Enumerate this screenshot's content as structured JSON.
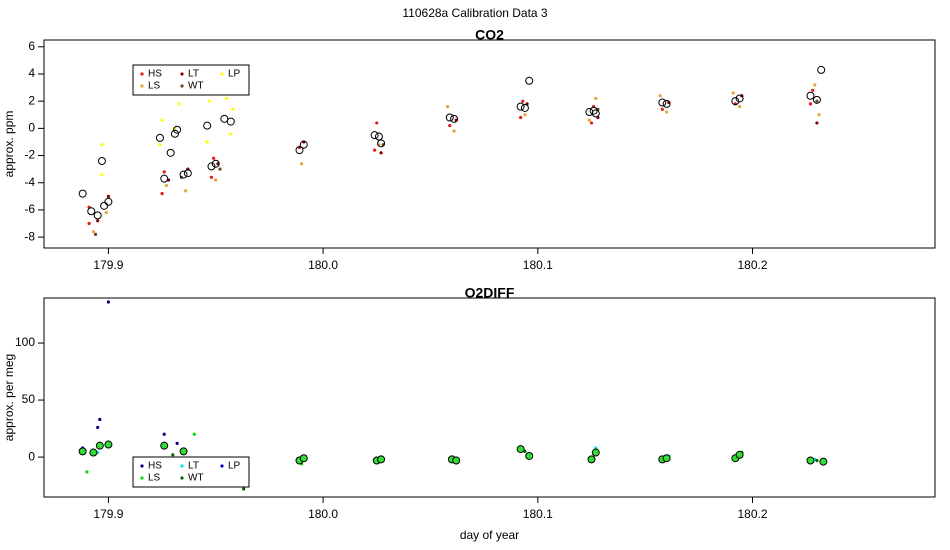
{
  "title": "110628a   Calibration Data 3",
  "chart_data": [
    {
      "type": "scatter",
      "title": "CO2",
      "ylabel": "approx. ppm",
      "xlim": [
        179.87,
        180.285
      ],
      "ylim": [
        -8.8,
        6.5
      ],
      "xticks": [
        179.9,
        {
          "value": 180,
          "label": "180.0"
        },
        180.1,
        180.2
      ],
      "yticks": [
        -8,
        -6,
        -4,
        -2,
        0,
        2,
        4,
        6
      ],
      "legend": "top-left",
      "series": [
        {
          "name": "HS",
          "color": "#e41a1c",
          "x": [
            179.891,
            179.891,
            179.925,
            179.926,
            179.948,
            179.949,
            179.989,
            180.024,
            180.025,
            180.059,
            180.092,
            180.093,
            180.125,
            180.126,
            180.158,
            180.192,
            180.227,
            180.228
          ],
          "values": [
            -7.0,
            -5.8,
            -4.8,
            -3.2,
            -3.6,
            -2.2,
            -1.4,
            -1.6,
            0.4,
            0.2,
            0.8,
            2.0,
            0.4,
            1.6,
            1.4,
            1.8,
            1.8,
            2.8
          ]
        },
        {
          "name": "LS",
          "color": "#e8a33a",
          "x": [
            179.893,
            179.899,
            179.927,
            179.936,
            179.95,
            179.99,
            180.026,
            180.058,
            180.061,
            180.094,
            180.124,
            180.127,
            180.157,
            180.16,
            180.191,
            180.194,
            180.229,
            180.231
          ],
          "values": [
            -7.6,
            -6.2,
            -4.2,
            -4.6,
            -3.8,
            -2.6,
            -1.2,
            1.6,
            -0.2,
            1.0,
            0.6,
            2.2,
            2.4,
            1.2,
            2.6,
            1.6,
            3.2,
            1.0
          ]
        },
        {
          "name": "LT",
          "color": "#8b0000",
          "x": [
            179.895,
            179.9,
            179.928,
            179.937,
            179.951,
            179.991,
            180.027,
            180.062,
            180.095,
            180.128,
            180.161,
            180.195,
            180.23
          ],
          "values": [
            -6.8,
            -5.0,
            -3.8,
            -3.0,
            -2.6,
            -1.0,
            -1.8,
            0.6,
            1.8,
            0.8,
            1.9,
            2.4,
            0.4
          ]
        },
        {
          "name": "WT",
          "color": "#6b4226",
          "x": [
            179.894,
            179.934,
            179.952,
            180.028,
            180.128,
            180.23
          ],
          "values": [
            -7.8,
            -3.6,
            -3.0,
            -1.2,
            1.4,
            2.0
          ]
        },
        {
          "name": "LP",
          "color": "#ffff00",
          "x": [
            179.897,
            179.897,
            179.924,
            179.925,
            179.931,
            179.933,
            179.946,
            179.947,
            179.955,
            179.957,
            179.958
          ],
          "values": [
            -1.2,
            -3.4,
            -1.2,
            0.6,
            0.0,
            1.8,
            -1.0,
            2.0,
            2.2,
            -0.4,
            1.4
          ]
        }
      ],
      "circles": {
        "color": "none",
        "x": [
          179.888,
          179.892,
          179.895,
          179.897,
          179.898,
          179.9,
          179.924,
          179.926,
          179.929,
          179.931,
          179.932,
          179.935,
          179.937,
          179.946,
          179.948,
          179.95,
          179.954,
          179.957,
          179.989,
          179.991,
          180.024,
          180.026,
          180.027,
          180.059,
          180.061,
          180.092,
          180.094,
          180.096,
          180.124,
          180.126,
          180.127,
          180.158,
          180.16,
          180.192,
          180.194,
          180.227,
          180.23,
          180.232
        ],
        "values": [
          -4.8,
          -6.1,
          -6.4,
          -2.4,
          -5.7,
          -5.4,
          -0.7,
          -3.7,
          -1.8,
          -0.4,
          -0.1,
          -3.4,
          -3.3,
          0.2,
          -2.8,
          -2.6,
          0.7,
          0.5,
          -1.6,
          -1.2,
          -0.5,
          -0.6,
          -1.1,
          0.8,
          0.7,
          1.6,
          1.5,
          3.5,
          1.2,
          1.3,
          1.1,
          1.9,
          1.8,
          2.0,
          2.2,
          2.4,
          2.1,
          4.3
        ]
      }
    },
    {
      "type": "scatter",
      "title": "O2DIFF",
      "ylabel": "approx. per meg",
      "xlabel": "day of year",
      "xlim": [
        179.87,
        180.285
      ],
      "ylim": [
        -35,
        139.5
      ],
      "xticks": [
        179.9,
        {
          "value": 180,
          "label": "180.0"
        },
        180.1,
        180.2
      ],
      "yticks": [
        0,
        50,
        100
      ],
      "legend": "bottom-left",
      "series": [
        {
          "name": "HS",
          "color": "#000080",
          "x": [
            179.888,
            179.895,
            179.896,
            179.9,
            179.925,
            179.926,
            179.932,
            179.935,
            180.092
          ],
          "values": [
            6,
            26,
            33,
            136,
            10,
            20,
            12,
            4,
            8
          ]
        },
        {
          "name": "LS",
          "color": "#00e000",
          "x": [
            179.89,
            179.893,
            179.94,
            179.99,
            180.025,
            180.06,
            180.125,
            180.158,
            180.192,
            180.227
          ],
          "values": [
            -13,
            3,
            20,
            -6,
            -4,
            -3,
            -3,
            -3,
            -2,
            -5
          ]
        },
        {
          "name": "LT",
          "color": "#00e5ee",
          "x": [
            179.895,
            180.027,
            180.127,
            180.161,
            180.229
          ],
          "values": [
            4,
            -1,
            8,
            1,
            -2
          ]
        },
        {
          "name": "WT",
          "color": "#006400",
          "x": [
            179.9,
            179.93,
            179.963,
            179.992,
            180.062,
            180.094,
            180.195,
            180.23
          ],
          "values": [
            12,
            2,
            -28,
            -1,
            -5,
            5,
            4,
            -3
          ]
        },
        {
          "name": "LP",
          "color": "#0000cd",
          "x": [
            179.888,
            179.935,
            180.096,
            180.233
          ],
          "values": [
            8,
            6,
            0,
            -4
          ]
        }
      ],
      "circles": {
        "color": "#33dd33",
        "x": [
          179.888,
          179.893,
          179.896,
          179.9,
          179.926,
          179.935,
          179.989,
          179.991,
          180.025,
          180.027,
          180.06,
          180.062,
          180.092,
          180.096,
          180.125,
          180.127,
          180.158,
          180.16,
          180.192,
          180.194,
          180.227,
          180.233
        ],
        "values": [
          5,
          4,
          10,
          11,
          10,
          5,
          -3,
          -1,
          -3,
          -2,
          -2,
          -3,
          7,
          1,
          -2,
          4,
          -2,
          -1,
          -1,
          2,
          -3,
          -4
        ]
      }
    }
  ]
}
